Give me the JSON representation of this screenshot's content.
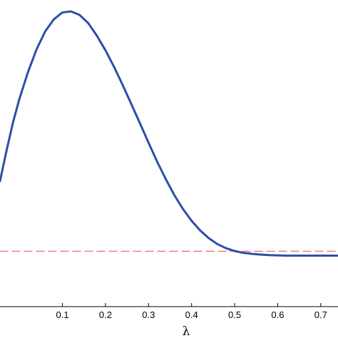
{
  "chart_data": {
    "type": "line",
    "xlabel": "λ",
    "xlim": [
      -0.045,
      0.74
    ],
    "ylim": [
      0,
      1
    ],
    "x_ticks": [
      "0.1",
      "0.2",
      "0.3",
      "0.4",
      "0.5",
      "0.6",
      "0.7"
    ],
    "x_tick_values": [
      0.1,
      0.2,
      0.3,
      0.4,
      0.5,
      0.6,
      0.7
    ],
    "grid": false,
    "series": [
      {
        "style": "solid",
        "color": "#2b4fa8",
        "x": [
          -0.045,
          -0.03,
          -0.015,
          0.0,
          0.02,
          0.04,
          0.06,
          0.08,
          0.1,
          0.12,
          0.14,
          0.16,
          0.18,
          0.2,
          0.22,
          0.24,
          0.26,
          0.28,
          0.3,
          0.32,
          0.34,
          0.36,
          0.38,
          0.4,
          0.42,
          0.44,
          0.46,
          0.48,
          0.5,
          0.52,
          0.54,
          0.56,
          0.58,
          0.6,
          0.62,
          0.64,
          0.66,
          0.68,
          0.7,
          0.72,
          0.74
        ],
        "y": [
          0.337,
          0.455,
          0.565,
          0.658,
          0.763,
          0.852,
          0.922,
          0.969,
          0.996,
          1.0,
          0.986,
          0.954,
          0.905,
          0.848,
          0.783,
          0.712,
          0.638,
          0.563,
          0.487,
          0.413,
          0.345,
          0.282,
          0.228,
          0.182,
          0.144,
          0.114,
          0.091,
          0.075,
          0.064,
          0.057,
          0.053,
          0.05,
          0.048,
          0.047,
          0.046,
          0.046,
          0.046,
          0.046,
          0.046,
          0.046,
          0.046
        ]
      },
      {
        "style": "dashed",
        "color": "#f08080",
        "x": [
          -0.045,
          0.74
        ],
        "y": [
          0.063,
          0.063
        ]
      }
    ]
  }
}
